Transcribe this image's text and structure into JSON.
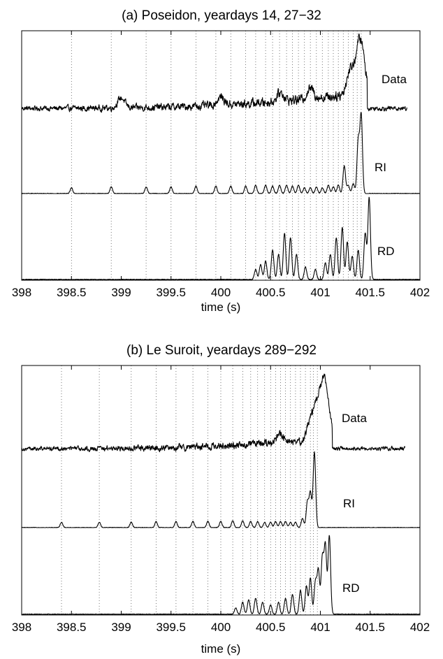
{
  "figure": {
    "background": "#ffffff",
    "line_color": "#000000",
    "grid_color": "#555555"
  },
  "chart_data": [
    {
      "id": "a",
      "type": "line",
      "title": "(a) Poseidon, yeardays 14, 27−32",
      "xlabel": "time (s)",
      "ylabel": "",
      "xlim": [
        398,
        402
      ],
      "xticks": [
        398,
        398.5,
        399,
        399.5,
        400,
        400.5,
        401,
        401.5,
        402
      ],
      "xtick_labels": [
        "398",
        "398.5",
        "399",
        "399.5",
        "400",
        "400.5",
        "401",
        "401.5",
        "402"
      ],
      "yticks": "none",
      "grid": "vertical dotted lines at arrival times",
      "arrival_times": [
        398.5,
        398.9,
        399.25,
        399.5,
        399.75,
        399.95,
        400.1,
        400.25,
        400.35,
        400.45,
        400.52,
        400.59,
        400.66,
        400.72,
        400.78,
        400.84,
        400.9,
        400.96,
        401.02,
        401.08,
        401.13,
        401.18,
        401.23,
        401.28,
        401.33,
        401.37,
        401.41
      ],
      "series": [
        {
          "name": "Data",
          "kind": "noisy_record",
          "x_range": [
            398,
            401.87
          ],
          "baseline": 0.25,
          "noise": 0.06,
          "growth": 0.35,
          "peaks": [
            [
              399.0,
              0.15
            ],
            [
              400.0,
              0.12
            ],
            [
              400.6,
              0.13
            ],
            [
              400.9,
              0.15
            ],
            [
              401.3,
              0.35
            ],
            [
              401.38,
              0.5
            ],
            [
              401.42,
              0.45
            ]
          ],
          "end_drop": 401.47
        },
        {
          "name": "RI",
          "kind": "arrival_pulses",
          "x_range": [
            398,
            402
          ],
          "pulses": [
            [
              398.5,
              0.07
            ],
            [
              398.9,
              0.08
            ],
            [
              399.25,
              0.08
            ],
            [
              399.5,
              0.08
            ],
            [
              399.75,
              0.09
            ],
            [
              399.95,
              0.09
            ],
            [
              400.1,
              0.09
            ],
            [
              400.25,
              0.09
            ],
            [
              400.35,
              0.1
            ],
            [
              400.45,
              0.1
            ],
            [
              400.52,
              0.09
            ],
            [
              400.59,
              0.1
            ],
            [
              400.66,
              0.1
            ],
            [
              400.72,
              0.09
            ],
            [
              400.78,
              0.1
            ],
            [
              400.84,
              0.07
            ],
            [
              400.9,
              0.07
            ],
            [
              400.96,
              0.08
            ],
            [
              401.02,
              0.07
            ],
            [
              401.08,
              0.1
            ],
            [
              401.13,
              0.08
            ],
            [
              401.18,
              0.1
            ],
            [
              401.24,
              0.33
            ],
            [
              401.28,
              0.1
            ],
            [
              401.33,
              0.12
            ],
            [
              401.38,
              0.62
            ],
            [
              401.41,
              0.93
            ]
          ]
        },
        {
          "name": "RD",
          "kind": "arrival_pulses",
          "x_range": [
            398,
            402
          ],
          "pulses": [
            [
              400.35,
              0.12
            ],
            [
              400.4,
              0.18
            ],
            [
              400.45,
              0.22
            ],
            [
              400.52,
              0.35
            ],
            [
              400.58,
              0.3
            ],
            [
              400.64,
              0.55
            ],
            [
              400.7,
              0.5
            ],
            [
              400.76,
              0.3
            ],
            [
              400.85,
              0.15
            ],
            [
              400.95,
              0.12
            ],
            [
              401.05,
              0.2
            ],
            [
              401.1,
              0.3
            ],
            [
              401.16,
              0.5
            ],
            [
              401.22,
              0.62
            ],
            [
              401.27,
              0.45
            ],
            [
              401.32,
              0.28
            ],
            [
              401.38,
              0.35
            ],
            [
              401.45,
              0.55
            ],
            [
              401.49,
              0.98
            ]
          ]
        }
      ]
    },
    {
      "id": "b",
      "type": "line",
      "title": "(b) Le Suroit, yeardays 289−292",
      "xlabel": "time (s)",
      "ylabel": "",
      "xlim": [
        398,
        402
      ],
      "xticks": [
        398,
        398.5,
        399,
        399.5,
        400,
        400.5,
        401,
        401.5,
        402
      ],
      "xtick_labels": [
        "398",
        "398.5",
        "399",
        "399.5",
        "400",
        "400.5",
        "401",
        "401.5",
        "402"
      ],
      "yticks": "none",
      "grid": "vertical dotted lines at arrival times",
      "arrival_times": [
        398.4,
        398.78,
        399.1,
        399.35,
        399.55,
        399.72,
        399.87,
        400.0,
        400.12,
        400.22,
        400.3,
        400.37,
        400.44,
        400.5,
        400.55,
        400.6,
        400.65,
        400.7,
        400.75,
        400.8,
        400.85,
        400.9,
        400.93,
        400.97
      ],
      "series": [
        {
          "name": "Data",
          "kind": "noisy_record",
          "x_range": [
            398,
            401.85
          ],
          "baseline": 0.25,
          "noise": 0.05,
          "growth": 0.3,
          "peaks": [
            [
              400.6,
              0.12
            ],
            [
              400.9,
              0.3
            ],
            [
              400.97,
              0.45
            ],
            [
              401.03,
              0.6
            ],
            [
              401.07,
              0.4
            ]
          ],
          "end_drop": 401.12
        },
        {
          "name": "RI",
          "kind": "arrival_pulses",
          "x_range": [
            398,
            402
          ],
          "pulses": [
            [
              398.4,
              0.07
            ],
            [
              398.78,
              0.07
            ],
            [
              399.1,
              0.07
            ],
            [
              399.35,
              0.08
            ],
            [
              399.55,
              0.08
            ],
            [
              399.72,
              0.08
            ],
            [
              399.87,
              0.08
            ],
            [
              400.0,
              0.08
            ],
            [
              400.12,
              0.09
            ],
            [
              400.22,
              0.09
            ],
            [
              400.3,
              0.08
            ],
            [
              400.37,
              0.08
            ],
            [
              400.44,
              0.07
            ],
            [
              400.5,
              0.07
            ],
            [
              400.55,
              0.08
            ],
            [
              400.6,
              0.08
            ],
            [
              400.65,
              0.08
            ],
            [
              400.7,
              0.07
            ],
            [
              400.75,
              0.07
            ],
            [
              400.82,
              0.12
            ],
            [
              400.87,
              0.33
            ],
            [
              400.9,
              0.45
            ],
            [
              400.94,
              0.98
            ]
          ]
        },
        {
          "name": "RD",
          "kind": "arrival_pulses",
          "x_range": [
            398,
            402
          ],
          "pulses": [
            [
              400.15,
              0.08
            ],
            [
              400.22,
              0.15
            ],
            [
              400.28,
              0.18
            ],
            [
              400.35,
              0.2
            ],
            [
              400.42,
              0.15
            ],
            [
              400.5,
              0.12
            ],
            [
              400.58,
              0.15
            ],
            [
              400.65,
              0.2
            ],
            [
              400.72,
              0.25
            ],
            [
              400.8,
              0.3
            ],
            [
              400.86,
              0.35
            ],
            [
              400.9,
              0.45
            ],
            [
              400.95,
              0.4
            ],
            [
              400.98,
              0.55
            ],
            [
              401.02,
              0.7
            ],
            [
              401.05,
              0.85
            ],
            [
              401.09,
              0.98
            ]
          ]
        }
      ]
    }
  ]
}
